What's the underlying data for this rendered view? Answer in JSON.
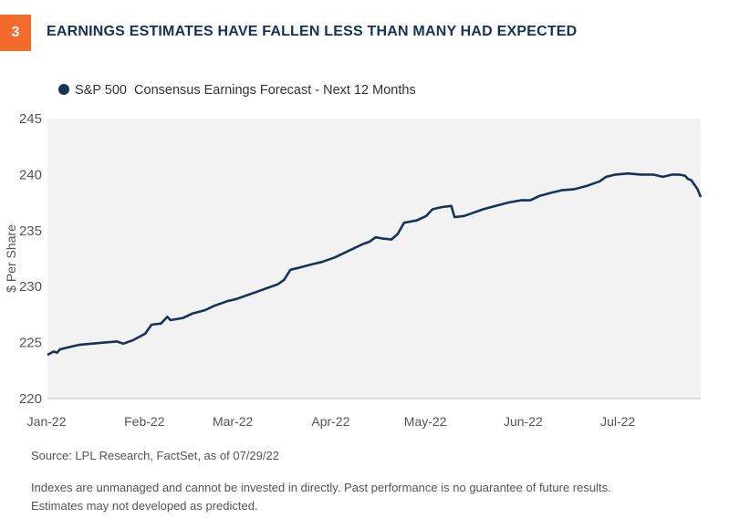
{
  "figure_number": "3",
  "title": "EARNINGS ESTIMATES HAVE FALLEN LESS THAN MANY HAD EXPECTED",
  "source": "Source: LPL Research, FactSet, as of  07/29/22",
  "disclaimer_lines": [
    "Indexes are unmanaged and cannot be invested in directly. Past performance is no guarantee of future results.",
    "Estimates may not developed as predicted."
  ],
  "colors": {
    "accent": "#f26b2a",
    "title": "#16325c",
    "series": "#16325c",
    "plot_bg": "#f2f2f2"
  },
  "chart_data": {
    "type": "line",
    "title": "",
    "xlabel": "",
    "ylabel": "$ Per Share",
    "ylim": [
      220,
      245
    ],
    "yticks": [
      220,
      225,
      230,
      235,
      240,
      245
    ],
    "xticks": [
      "Jan-22",
      "Feb-22",
      "Mar-22",
      "Apr-22",
      "May-22",
      "Jun-22",
      "Jul-22"
    ],
    "xlim": [
      "2022-01-03",
      "2022-07-29"
    ],
    "grid": false,
    "legend_position": "top-left",
    "series": [
      {
        "name": "S&P 500  Consensus Earnings Forecast - Next 12 Months",
        "points": [
          [
            "2022-01-03",
            223.9
          ],
          [
            "2022-01-05",
            224.2
          ],
          [
            "2022-01-06",
            224.1
          ],
          [
            "2022-01-07",
            224.4
          ],
          [
            "2022-01-10",
            224.6
          ],
          [
            "2022-01-13",
            224.8
          ],
          [
            "2022-01-17",
            224.9
          ],
          [
            "2022-01-21",
            225.0
          ],
          [
            "2022-01-25",
            225.1
          ],
          [
            "2022-01-27",
            224.9
          ],
          [
            "2022-01-30",
            225.2
          ],
          [
            "2022-02-01",
            225.5
          ],
          [
            "2022-02-03",
            225.8
          ],
          [
            "2022-02-05",
            226.6
          ],
          [
            "2022-02-08",
            226.7
          ],
          [
            "2022-02-10",
            227.3
          ],
          [
            "2022-02-11",
            227.0
          ],
          [
            "2022-02-15",
            227.2
          ],
          [
            "2022-02-18",
            227.6
          ],
          [
            "2022-02-22",
            227.9
          ],
          [
            "2022-02-25",
            228.3
          ],
          [
            "2022-03-01",
            228.7
          ],
          [
            "2022-03-04",
            228.9
          ],
          [
            "2022-03-07",
            229.2
          ],
          [
            "2022-03-10",
            229.5
          ],
          [
            "2022-03-14",
            229.9
          ],
          [
            "2022-03-17",
            230.2
          ],
          [
            "2022-03-19",
            230.6
          ],
          [
            "2022-03-21",
            231.5
          ],
          [
            "2022-03-24",
            231.7
          ],
          [
            "2022-03-28",
            232.0
          ],
          [
            "2022-03-31",
            232.2
          ],
          [
            "2022-04-04",
            232.6
          ],
          [
            "2022-04-07",
            233.0
          ],
          [
            "2022-04-10",
            233.4
          ],
          [
            "2022-04-13",
            233.8
          ],
          [
            "2022-04-15",
            234.0
          ],
          [
            "2022-04-17",
            234.4
          ],
          [
            "2022-04-19",
            234.3
          ],
          [
            "2022-04-22",
            234.2
          ],
          [
            "2022-04-24",
            234.7
          ],
          [
            "2022-04-26",
            235.7
          ],
          [
            "2022-04-30",
            235.9
          ],
          [
            "2022-05-03",
            236.3
          ],
          [
            "2022-05-05",
            236.9
          ],
          [
            "2022-05-08",
            237.1
          ],
          [
            "2022-05-11",
            237.2
          ],
          [
            "2022-05-12",
            236.2
          ],
          [
            "2022-05-15",
            236.3
          ],
          [
            "2022-05-18",
            236.6
          ],
          [
            "2022-05-21",
            236.9
          ],
          [
            "2022-05-25",
            237.2
          ],
          [
            "2022-05-29",
            237.5
          ],
          [
            "2022-06-02",
            237.7
          ],
          [
            "2022-06-05",
            237.7
          ],
          [
            "2022-06-08",
            238.1
          ],
          [
            "2022-06-12",
            238.4
          ],
          [
            "2022-06-15",
            238.6
          ],
          [
            "2022-06-19",
            238.7
          ],
          [
            "2022-06-23",
            239.0
          ],
          [
            "2022-06-27",
            239.4
          ],
          [
            "2022-06-29",
            239.8
          ],
          [
            "2022-07-02",
            240.0
          ],
          [
            "2022-07-06",
            240.1
          ],
          [
            "2022-07-10",
            240.0
          ],
          [
            "2022-07-14",
            240.0
          ],
          [
            "2022-07-17",
            239.8
          ],
          [
            "2022-07-20",
            240.0
          ],
          [
            "2022-07-22",
            240.0
          ],
          [
            "2022-07-24",
            239.9
          ],
          [
            "2022-07-25",
            239.6
          ],
          [
            "2022-07-26",
            239.5
          ],
          [
            "2022-07-27",
            239.1
          ],
          [
            "2022-07-28",
            238.7
          ],
          [
            "2022-07-29",
            238.0
          ]
        ]
      }
    ]
  }
}
